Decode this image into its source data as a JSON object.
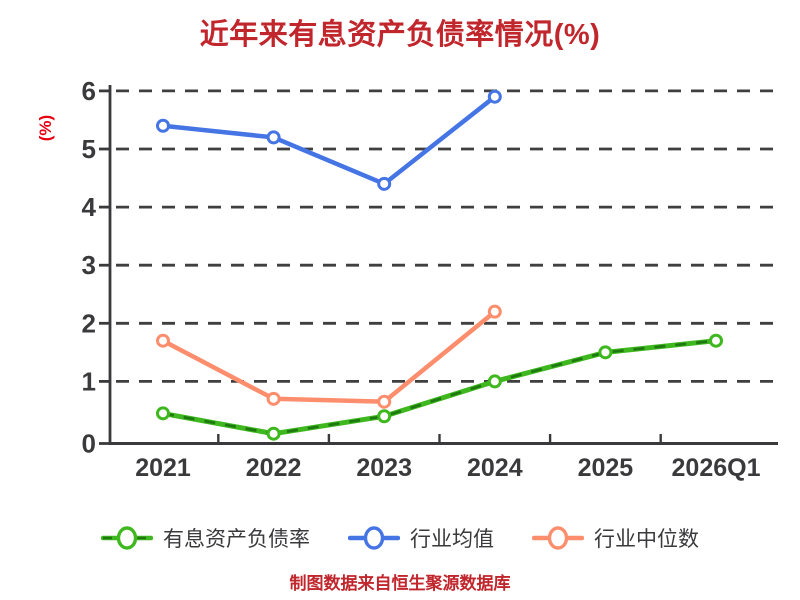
{
  "page": {
    "background": "#ffffff"
  },
  "chart_data": {
    "type": "line",
    "title": "近年来有息资产负债率情况(%)",
    "ylabel": "(%)",
    "footer": "制图数据来自恒生聚源数据库",
    "categories": [
      "2021",
      "2022",
      "2023",
      "2024",
      "2025",
      "2026Q1"
    ],
    "ylim": [
      0,
      6
    ],
    "yticks": [
      0,
      1,
      2,
      3,
      4,
      5,
      6
    ],
    "grid": {
      "axis": "y",
      "style": "dashed"
    },
    "legend_position": "bottom",
    "colors": {
      "background": "#ffffff",
      "title": "#c0262c",
      "ylabel": "#e60012",
      "footer": "#c0262c",
      "axis": "#3a3a3c",
      "grid": "#3f3f3f",
      "tick_label": "#3a3a3c",
      "legend_text": "#3a3a3c",
      "marker_fill": "#ffffff"
    },
    "series": [
      {
        "name": "有息资产负债率",
        "color": "#3eb81e",
        "overlay_dash_color": "#1e7a10",
        "line_style": "dash-over-solid",
        "marker": "circle-white-fill",
        "values": [
          0.45,
          0.1,
          0.4,
          1.0,
          1.5,
          1.7
        ]
      },
      {
        "name": "行业均值",
        "color": "#4574e4",
        "line_style": "solid",
        "marker": "circle-white-fill",
        "values": [
          5.4,
          5.2,
          4.4,
          5.9,
          null,
          null
        ]
      },
      {
        "name": "行业中位数",
        "color": "#fd8e6d",
        "line_style": "solid",
        "marker": "circle-white-fill",
        "values": [
          1.7,
          0.7,
          0.65,
          2.2,
          null,
          null
        ]
      }
    ]
  }
}
